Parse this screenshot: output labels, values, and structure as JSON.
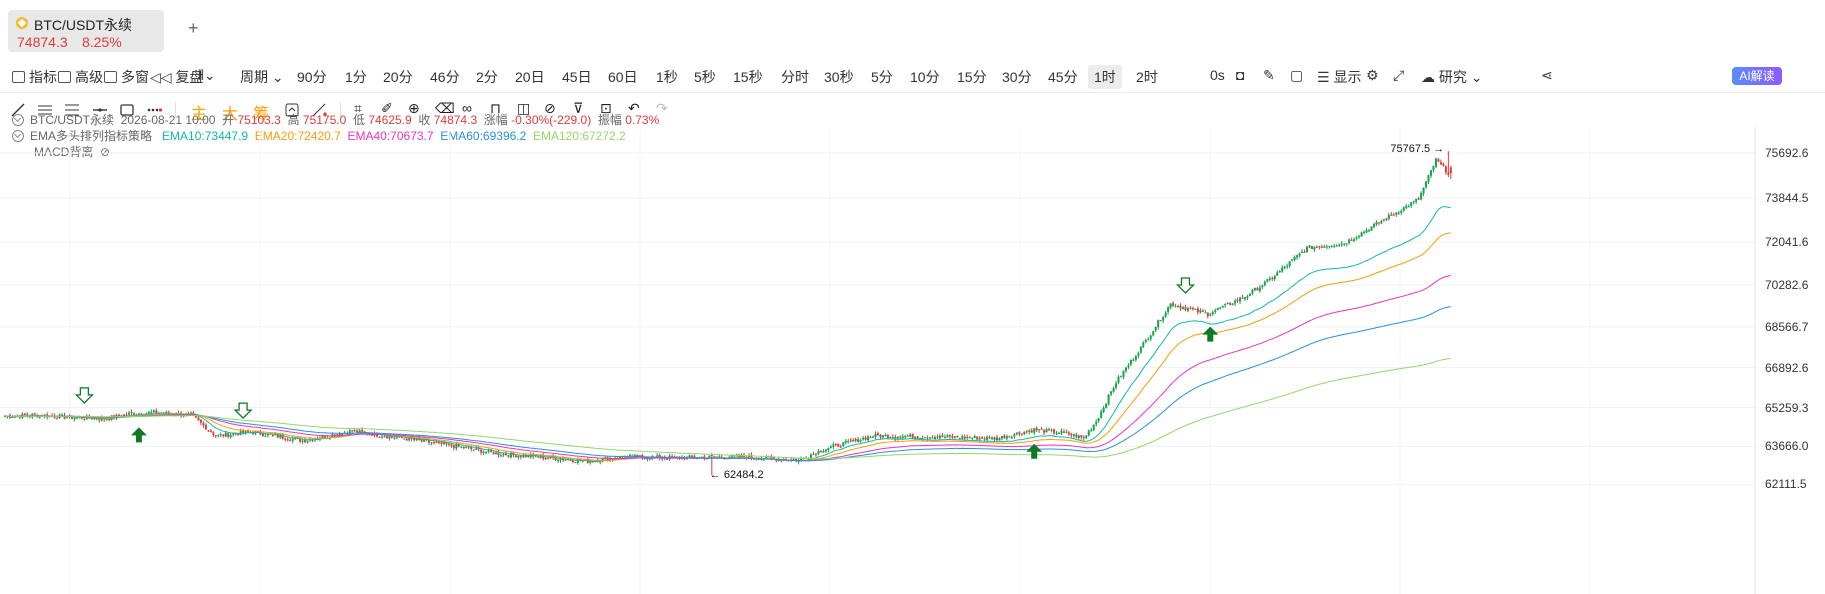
{
  "tab": {
    "symbol": "BTC/USDT永续",
    "price": "74874.3",
    "change": "8.25%"
  },
  "toolbar": {
    "indicators": "指标",
    "advanced": "高级",
    "multi_window": "多窗",
    "replay": "复盘",
    "period_label": "周期",
    "periods": [
      "90分",
      "1分",
      "20分",
      "46分",
      "2分",
      "20日",
      "45日",
      "60日",
      "1秒",
      "5秒",
      "15秒",
      "分时",
      "30秒",
      "5分",
      "10分",
      "15分",
      "30分",
      "45分",
      "1时",
      "2时"
    ],
    "selected_period": "1时",
    "countdown": "0s",
    "display": "显示",
    "research": "研究",
    "ai": "AI解读"
  },
  "drawtools": {
    "main": "主",
    "big": "大",
    "chip": "筹"
  },
  "ohlc": {
    "symbol": "BTC/USDT永续",
    "datetime": "2026-08-21 10:00",
    "open_label": "开",
    "open": "75103.3",
    "high_label": "高",
    "high": "75175.0",
    "low_label": "低",
    "low": "74625.9",
    "close_label": "收",
    "close": "74874.3",
    "change_label": "涨幅",
    "change": "-0.30%(-229.0)",
    "amp_label": "振幅",
    "amp": "0.73%"
  },
  "strategy": {
    "name": "EMA多头排列指标策略",
    "ema10": "EMA10:73447.9",
    "ema20": "EMA20:72420.7",
    "ema40": "EMA40:70673.7",
    "ema60": "EMA60:69396.2",
    "ema120": "EMA120:67272.2"
  },
  "macd": {
    "name": "MACD背离"
  },
  "colors": {
    "up": "#16a34a",
    "down": "#e03b3b",
    "ema10": "#14b8a6",
    "ema20": "#f59e0b",
    "ema40": "#e535c4",
    "ema60": "#2b8fe0",
    "ema120": "#93d66a"
  },
  "chart_data": {
    "type": "candlestick",
    "y_ticks": [
      "75692.6",
      "73844.5",
      "72041.6",
      "70282.6",
      "68566.7",
      "66892.6",
      "65259.3",
      "63666.0",
      "62111.5"
    ],
    "max_label": "75767.5",
    "min_label": "62484.2",
    "ylim": [
      61900,
      76300
    ],
    "close_path": [
      [
        0,
        64900
      ],
      [
        12,
        64950
      ],
      [
        28,
        64850
      ],
      [
        40,
        64800
      ],
      [
        50,
        65000
      ],
      [
        60,
        65050
      ],
      [
        75,
        64950
      ],
      [
        85,
        64100
      ],
      [
        100,
        64250
      ],
      [
        120,
        63900
      ],
      [
        140,
        64300
      ],
      [
        160,
        64000
      ],
      [
        180,
        63700
      ],
      [
        200,
        63350
      ],
      [
        220,
        63200
      ],
      [
        235,
        63050
      ],
      [
        250,
        63250
      ],
      [
        270,
        63200
      ],
      [
        295,
        63250
      ],
      [
        320,
        63100
      ],
      [
        330,
        63550
      ],
      [
        350,
        64100
      ],
      [
        380,
        64050
      ],
      [
        400,
        64000
      ],
      [
        415,
        64350
      ],
      [
        428,
        64200
      ],
      [
        435,
        64000
      ],
      [
        440,
        64700
      ],
      [
        448,
        66300
      ],
      [
        460,
        68000
      ],
      [
        470,
        69500
      ],
      [
        485,
        69100
      ],
      [
        500,
        69800
      ],
      [
        510,
        70500
      ],
      [
        525,
        71800
      ],
      [
        540,
        72000
      ],
      [
        555,
        72900
      ],
      [
        570,
        73800
      ],
      [
        577,
        75400
      ],
      [
        582,
        74874.3
      ]
    ],
    "ema_endpoints": {
      "ema10": 73447.9,
      "ema20": 72420.7,
      "ema40": 70673.7,
      "ema60": 69396.2,
      "ema120": 67272.2
    },
    "signals": [
      {
        "type": "sell",
        "index": 32
      },
      {
        "type": "buy",
        "index": 54
      },
      {
        "type": "sell",
        "index": 96
      },
      {
        "type": "buy",
        "index": 415
      },
      {
        "type": "sell",
        "index": 476
      },
      {
        "type": "buy",
        "index": 486
      }
    ]
  }
}
